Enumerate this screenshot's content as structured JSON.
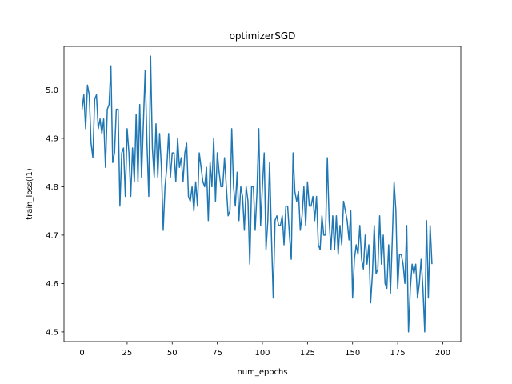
{
  "chart_data": {
    "type": "line",
    "title": "optimizerSGD",
    "xlabel": "num_epochs",
    "ylabel": "train_loss(l1)",
    "xlim": [
      -10,
      210
    ],
    "ylim": [
      4.48,
      5.09
    ],
    "xticks": [
      0,
      25,
      50,
      75,
      100,
      125,
      150,
      175,
      200
    ],
    "yticks": [
      4.5,
      4.6,
      4.7,
      4.8,
      4.9,
      5.0
    ],
    "ytick_labels": [
      "4.5",
      "4.6",
      "4.7",
      "4.8",
      "4.9",
      "5.0"
    ],
    "grid": false,
    "legend": "none",
    "series": [
      {
        "color": "#1f77b4",
        "x_start": 0,
        "x_step": 1,
        "values": [
          4.96,
          4.99,
          4.92,
          5.01,
          4.99,
          4.89,
          4.86,
          4.98,
          4.99,
          4.92,
          4.94,
          4.91,
          4.94,
          4.84,
          4.96,
          4.97,
          5.05,
          4.85,
          4.87,
          4.96,
          4.96,
          4.76,
          4.87,
          4.88,
          4.78,
          4.92,
          4.87,
          4.78,
          4.88,
          4.81,
          4.95,
          4.81,
          4.97,
          4.82,
          4.93,
          5.04,
          4.89,
          4.78,
          5.07,
          4.88,
          4.82,
          4.93,
          4.82,
          4.91,
          4.84,
          4.71,
          4.8,
          4.84,
          4.91,
          4.82,
          4.87,
          4.87,
          4.81,
          4.9,
          4.84,
          4.86,
          4.81,
          4.87,
          4.89,
          4.78,
          4.77,
          4.8,
          4.75,
          4.81,
          4.76,
          4.87,
          4.84,
          4.81,
          4.8,
          4.84,
          4.73,
          4.85,
          4.8,
          4.9,
          4.77,
          4.87,
          4.83,
          4.8,
          4.8,
          4.86,
          4.8,
          4.74,
          4.75,
          4.92,
          4.8,
          4.76,
          4.83,
          4.73,
          4.8,
          4.78,
          4.71,
          4.8,
          4.77,
          4.64,
          4.8,
          4.8,
          4.71,
          4.79,
          4.92,
          4.72,
          4.8,
          4.87,
          4.67,
          4.73,
          4.85,
          4.7,
          4.57,
          4.73,
          4.74,
          4.72,
          4.72,
          4.74,
          4.68,
          4.76,
          4.76,
          4.7,
          4.65,
          4.87,
          4.79,
          4.77,
          4.79,
          4.71,
          4.74,
          4.8,
          4.72,
          4.81,
          4.76,
          4.76,
          4.78,
          4.73,
          4.78,
          4.68,
          4.67,
          4.74,
          4.7,
          4.7,
          4.86,
          4.73,
          4.67,
          4.74,
          4.67,
          4.74,
          4.66,
          4.72,
          4.68,
          4.77,
          4.75,
          4.73,
          4.69,
          4.75,
          4.57,
          4.65,
          4.68,
          4.66,
          4.72,
          4.65,
          4.63,
          4.7,
          4.64,
          4.68,
          4.56,
          4.62,
          4.72,
          4.62,
          4.63,
          4.74,
          4.64,
          4.7,
          4.6,
          4.59,
          4.68,
          4.58,
          4.69,
          4.81,
          4.75,
          4.59,
          4.66,
          4.66,
          4.64,
          4.6,
          4.72,
          4.5,
          4.59,
          4.64,
          4.62,
          4.64,
          4.57,
          4.6,
          4.65,
          4.59,
          4.5,
          4.73,
          4.57,
          4.72,
          4.64
        ]
      }
    ]
  }
}
